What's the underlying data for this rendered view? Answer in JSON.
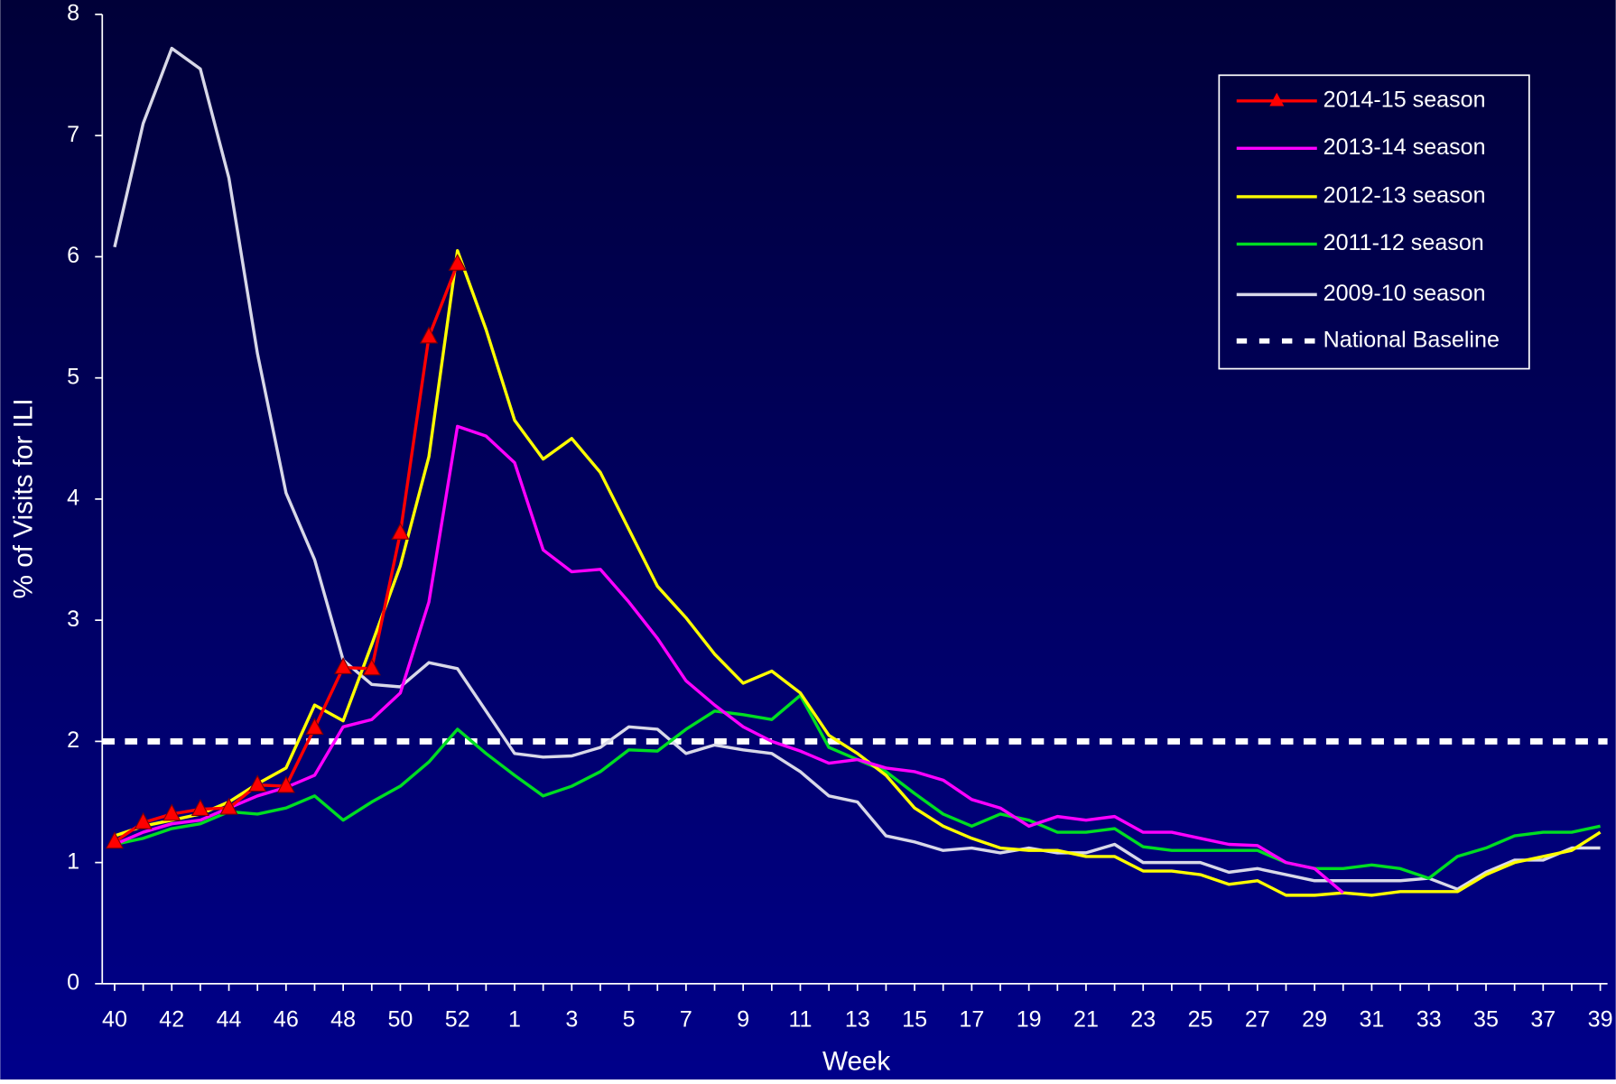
{
  "chart_data": {
    "type": "line",
    "x_label": "Week",
    "y_label": "% of Visits for ILI",
    "categories": [
      "40",
      null,
      "42",
      null,
      "44",
      null,
      "46",
      null,
      "48",
      null,
      "50",
      null,
      "52",
      null,
      "1",
      null,
      "3",
      null,
      "5",
      null,
      "7",
      null,
      "9",
      null,
      "11",
      null,
      "13",
      null,
      "15",
      null,
      "17",
      null,
      "19",
      null,
      "21",
      null,
      "23",
      null,
      "25",
      null,
      "27",
      null,
      "29",
      null,
      "31",
      null,
      "33",
      null,
      "35",
      null,
      "37",
      null,
      "39"
    ],
    "ylim": [
      0,
      8
    ],
    "yticks": [
      0,
      1,
      2,
      3,
      4,
      5,
      6,
      7,
      8
    ],
    "series": [
      {
        "name": "2014-15 season",
        "color": "#ff0000",
        "marker": "triangle",
        "values": [
          1.17,
          1.33,
          1.4,
          1.44,
          1.45,
          1.64,
          1.63,
          2.11,
          2.61,
          2.6,
          3.72,
          5.34,
          5.94,
          null,
          null,
          null,
          null,
          null,
          null,
          null,
          null,
          null,
          null,
          null,
          null,
          null,
          null,
          null,
          null,
          null,
          null,
          null,
          null,
          null,
          null,
          null,
          null,
          null,
          null,
          null,
          null,
          null,
          null,
          null,
          null,
          null,
          null,
          null,
          null,
          null,
          null,
          null,
          null
        ]
      },
      {
        "name": "2013-14 season",
        "color": "#ff00ff",
        "values": [
          1.15,
          1.25,
          1.32,
          1.35,
          1.45,
          1.55,
          1.62,
          1.72,
          2.12,
          2.18,
          2.4,
          3.15,
          4.6,
          4.52,
          4.3,
          3.58,
          3.4,
          3.42,
          3.15,
          2.85,
          2.5,
          2.3,
          2.12,
          2.0,
          1.92,
          1.82,
          1.85,
          1.78,
          1.75,
          1.68,
          1.52,
          1.45,
          1.3,
          1.38,
          1.35,
          1.38,
          1.25,
          1.25,
          1.2,
          1.15,
          1.14,
          1.0,
          0.95,
          0.75,
          null,
          null,
          null,
          null,
          null,
          null,
          null,
          null,
          null
        ]
      },
      {
        "name": "2012-13 season",
        "color": "#ffff00",
        "values": [
          1.22,
          1.3,
          1.35,
          1.4,
          1.5,
          1.65,
          1.78,
          2.3,
          2.17,
          2.8,
          3.45,
          4.35,
          6.05,
          5.4,
          4.65,
          4.33,
          4.5,
          4.22,
          3.75,
          3.28,
          3.02,
          2.72,
          2.48,
          2.58,
          2.4,
          2.05,
          1.9,
          1.72,
          1.45,
          1.3,
          1.2,
          1.12,
          1.1,
          1.1,
          1.05,
          1.05,
          0.93,
          0.93,
          0.9,
          0.82,
          0.85,
          0.73,
          0.73,
          0.75,
          0.73,
          0.76,
          0.76,
          0.76,
          0.9,
          1.0,
          1.05,
          1.1,
          1.25
        ]
      },
      {
        "name": "2011-12 season",
        "color": "#00dd22",
        "values": [
          1.15,
          1.2,
          1.28,
          1.32,
          1.42,
          1.4,
          1.45,
          1.55,
          1.35,
          1.5,
          1.63,
          1.83,
          2.1,
          1.9,
          1.72,
          1.55,
          1.63,
          1.75,
          1.93,
          1.92,
          2.1,
          2.25,
          2.22,
          2.18,
          2.38,
          1.95,
          1.85,
          1.75,
          1.57,
          1.4,
          1.3,
          1.4,
          1.35,
          1.25,
          1.25,
          1.28,
          1.13,
          1.1,
          1.1,
          1.1,
          1.1,
          1.0,
          0.95,
          0.95,
          0.98,
          0.95,
          0.87,
          1.05,
          1.12,
          1.22,
          1.25,
          1.25,
          1.3
        ]
      },
      {
        "name": "2009-10 season",
        "color": "#d8d8e8",
        "values": [
          6.08,
          7.1,
          7.72,
          7.55,
          6.65,
          5.2,
          4.05,
          3.5,
          2.67,
          2.47,
          2.45,
          2.65,
          2.6,
          2.25,
          1.9,
          1.87,
          1.88,
          1.95,
          2.12,
          2.1,
          1.9,
          1.97,
          1.93,
          1.9,
          1.75,
          1.55,
          1.5,
          1.22,
          1.17,
          1.1,
          1.12,
          1.08,
          1.12,
          1.08,
          1.08,
          1.15,
          1.0,
          1.0,
          1.0,
          0.92,
          0.95,
          0.9,
          0.85,
          0.85,
          0.85,
          0.85,
          0.87,
          0.78,
          0.92,
          1.02,
          1.02,
          1.12,
          1.12
        ]
      }
    ],
    "baseline": {
      "name": "National Baseline",
      "value": 2,
      "color": "#ffffff"
    }
  }
}
